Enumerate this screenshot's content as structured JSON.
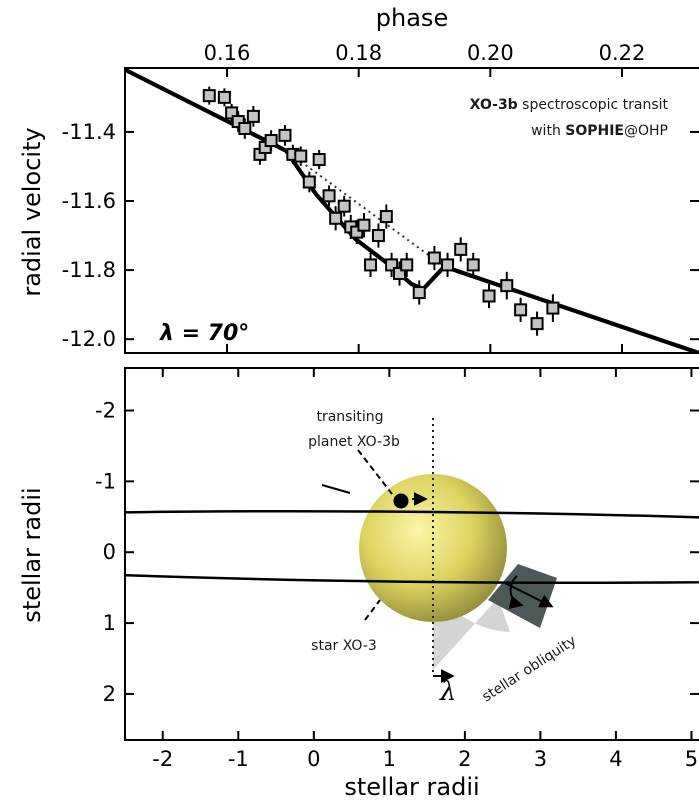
{
  "chart_data": [
    {
      "type": "scatter",
      "panel": "top",
      "xlabel": "phase",
      "ylabel": "radial velocity",
      "xlim": [
        0.1445,
        0.2317
      ],
      "ylim": [
        -12.04,
        -11.215
      ],
      "x_ticks": [
        0.16,
        0.18,
        0.2,
        0.22
      ],
      "x_tick_labels": [
        "0.16",
        "0.18",
        "0.20",
        "0.22"
      ],
      "y_ticks": [
        -11.4,
        -11.6,
        -11.8,
        -12.0
      ],
      "y_tick_labels": [
        "-11.4",
        "-11.6",
        "-11.8",
        "-12.0"
      ],
      "x_axis_position": "top",
      "annotation": {
        "part1_bold": "XO-3b",
        "part1_rest": " spectroscopic transit",
        "part2_pre": "with ",
        "part2_bold": "SOPHIE",
        "part2_post": "@OHP"
      },
      "lambda_label": "λ = 70°",
      "series": [
        {
          "kind": "data",
          "points": [
            {
              "x": 0.1573,
              "y": -11.295,
              "err": 0.026
            },
            {
              "x": 0.1596,
              "y": -11.3,
              "err": 0.026
            },
            {
              "x": 0.1607,
              "y": -11.345,
              "err": 0.026
            },
            {
              "x": 0.1617,
              "y": -11.37,
              "err": 0.03
            },
            {
              "x": 0.1627,
              "y": -11.39,
              "err": 0.03
            },
            {
              "x": 0.164,
              "y": -11.355,
              "err": 0.03
            },
            {
              "x": 0.165,
              "y": -11.465,
              "err": 0.03
            },
            {
              "x": 0.1658,
              "y": -11.445,
              "err": 0.03
            },
            {
              "x": 0.1667,
              "y": -11.425,
              "err": 0.03
            },
            {
              "x": 0.1688,
              "y": -11.41,
              "err": 0.03
            },
            {
              "x": 0.17,
              "y": -11.465,
              "err": 0.028
            },
            {
              "x": 0.1712,
              "y": -11.47,
              "err": 0.028
            },
            {
              "x": 0.1725,
              "y": -11.545,
              "err": 0.03
            },
            {
              "x": 0.174,
              "y": -11.48,
              "err": 0.028
            },
            {
              "x": 0.1755,
              "y": -11.585,
              "err": 0.03
            },
            {
              "x": 0.1765,
              "y": -11.65,
              "err": 0.035
            },
            {
              "x": 0.1778,
              "y": -11.615,
              "err": 0.03
            },
            {
              "x": 0.1788,
              "y": -11.675,
              "err": 0.035
            },
            {
              "x": 0.1797,
              "y": -11.69,
              "err": 0.035
            },
            {
              "x": 0.1808,
              "y": -11.67,
              "err": 0.035
            },
            {
              "x": 0.1818,
              "y": -11.785,
              "err": 0.035
            },
            {
              "x": 0.183,
              "y": -11.7,
              "err": 0.035
            },
            {
              "x": 0.1842,
              "y": -11.645,
              "err": 0.035
            },
            {
              "x": 0.185,
              "y": -11.785,
              "err": 0.035
            },
            {
              "x": 0.1862,
              "y": -11.81,
              "err": 0.035
            },
            {
              "x": 0.1873,
              "y": -11.785,
              "err": 0.035
            },
            {
              "x": 0.1892,
              "y": -11.865,
              "err": 0.035
            },
            {
              "x": 0.1915,
              "y": -11.765,
              "err": 0.035
            },
            {
              "x": 0.1935,
              "y": -11.785,
              "err": 0.035
            },
            {
              "x": 0.1955,
              "y": -11.74,
              "err": 0.035
            },
            {
              "x": 0.1974,
              "y": -11.785,
              "err": 0.035
            },
            {
              "x": 0.1998,
              "y": -11.875,
              "err": 0.035
            },
            {
              "x": 0.2025,
              "y": -11.845,
              "err": 0.04
            },
            {
              "x": 0.2046,
              "y": -11.915,
              "err": 0.035
            },
            {
              "x": 0.2071,
              "y": -11.955,
              "err": 0.035
            },
            {
              "x": 0.2095,
              "y": -11.91,
              "err": 0.04
            }
          ]
        },
        {
          "kind": "model",
          "style": "solid",
          "points": [
            [
              0.1445,
              -11.22
            ],
            [
              0.169,
              -11.455
            ],
            [
              0.1735,
              -11.58
            ],
            [
              0.1795,
              -11.71
            ],
            [
              0.184,
              -11.775
            ],
            [
              0.188,
              -11.84
            ],
            [
              0.1898,
              -11.855
            ],
            [
              0.193,
              -11.79
            ],
            [
              0.2317,
              -12.04
            ]
          ]
        },
        {
          "kind": "keplerian",
          "style": "dotted",
          "points": [
            [
              0.169,
              -11.455
            ],
            [
              0.193,
              -11.79
            ]
          ]
        }
      ]
    },
    {
      "type": "diagram",
      "panel": "bottom",
      "xlabel": "stellar radii",
      "ylabel": "stellar radii",
      "xlim": [
        -2.5,
        5.1
      ],
      "ylim": [
        2.65,
        -2.6
      ],
      "x_ticks": [
        -2,
        -1,
        0,
        1,
        2,
        3,
        4,
        5
      ],
      "x_tick_labels": [
        "-2",
        "-1",
        "0",
        "1",
        "2",
        "3",
        "4",
        "5"
      ],
      "y_ticks": [
        -2,
        -1,
        0,
        1,
        2
      ],
      "y_tick_labels": [
        "-2",
        "-1",
        "0",
        "1",
        "2"
      ],
      "star": {
        "center": [
          1.5,
          0.0
        ],
        "radius": 1.0,
        "color": "#d9cf63",
        "label": "star XO-3"
      },
      "planet": {
        "position": [
          1.15,
          -0.62
        ],
        "label_lines": [
          "transiting",
          "planet XO-3b"
        ]
      },
      "orbit": {
        "center": [
          1.5,
          0.0
        ],
        "semi_major": 9.0,
        "semi_minor": 0.47,
        "tilt_deg": 0.6
      },
      "obliquity_label": "stellar obliquity",
      "lambda_symbol": "λ",
      "shading_colors": {
        "light_wedge": "#d4d4d4",
        "dark_wedge": "#4d5858"
      }
    }
  ]
}
